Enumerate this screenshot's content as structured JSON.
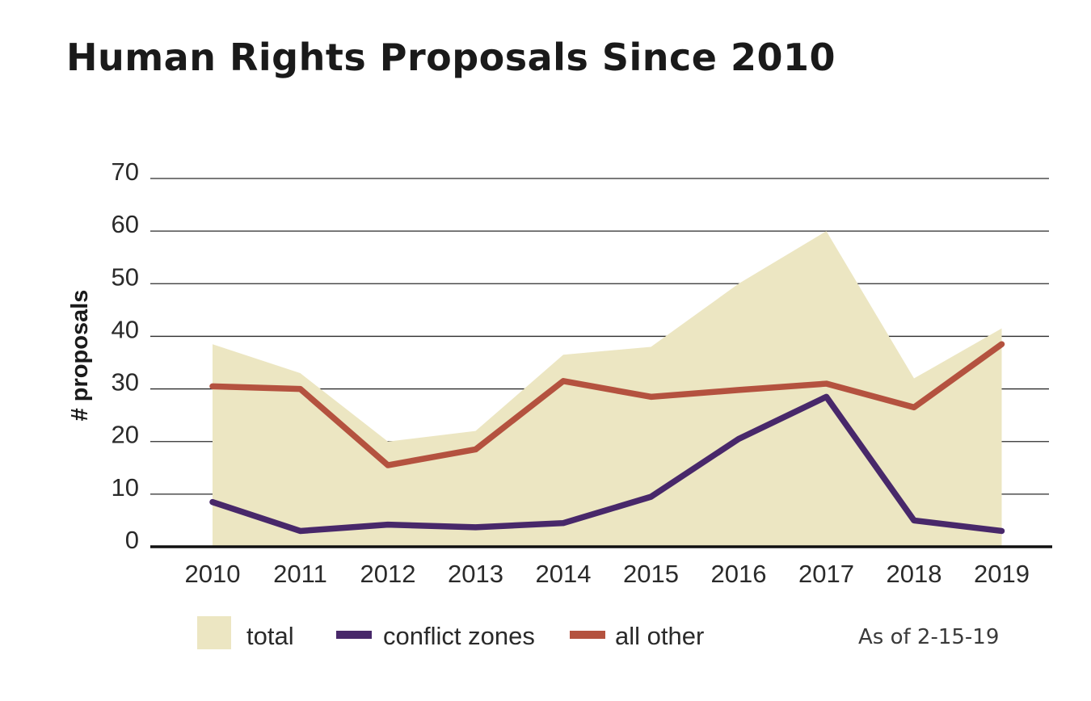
{
  "chart_data": {
    "type": "line",
    "title": "Human Rights Proposals Since 2010",
    "xlabel": "",
    "ylabel": "# proposals",
    "categories": [
      "2010",
      "2011",
      "2012",
      "2013",
      "2014",
      "2015",
      "2016",
      "2017",
      "2018",
      "2019"
    ],
    "ylim": [
      0,
      70
    ],
    "yticks": [
      0,
      10,
      20,
      30,
      40,
      50,
      60,
      70
    ],
    "grid": true,
    "series": [
      {
        "name": "total",
        "kind": "area",
        "color": "#ece6c2",
        "values": [
          38.5,
          33,
          20,
          22,
          36.5,
          38,
          50,
          60,
          32,
          41.5
        ]
      },
      {
        "name": "conflict zones",
        "kind": "line",
        "color": "#48286a",
        "values": [
          8.5,
          3,
          4.2,
          3.7,
          4.5,
          9.5,
          20.5,
          28.5,
          5,
          3
        ]
      },
      {
        "name": "all other",
        "kind": "line",
        "color": "#b4523f",
        "values": [
          30.5,
          30,
          15.5,
          18.5,
          31.5,
          28.5,
          29.8,
          31,
          26.5,
          38.5
        ]
      }
    ],
    "legend": [
      {
        "label": "total",
        "swatch": "area",
        "color": "#ece6c2"
      },
      {
        "label": "conflict zones",
        "swatch": "line",
        "color": "#48286a"
      },
      {
        "label": "all other",
        "swatch": "line",
        "color": "#b4523f"
      }
    ],
    "legend_position": "bottom",
    "note": "As of 2-15-19"
  }
}
